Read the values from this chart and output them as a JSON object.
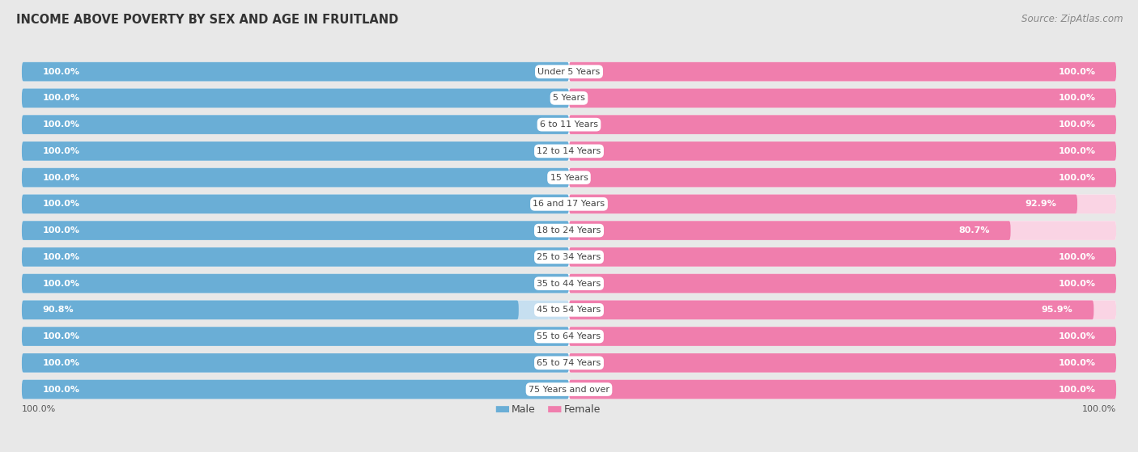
{
  "title": "INCOME ABOVE POVERTY BY SEX AND AGE IN FRUITLAND",
  "source": "Source: ZipAtlas.com",
  "categories": [
    "Under 5 Years",
    "5 Years",
    "6 to 11 Years",
    "12 to 14 Years",
    "15 Years",
    "16 and 17 Years",
    "18 to 24 Years",
    "25 to 34 Years",
    "35 to 44 Years",
    "45 to 54 Years",
    "55 to 64 Years",
    "65 to 74 Years",
    "75 Years and over"
  ],
  "male_values": [
    100.0,
    100.0,
    100.0,
    100.0,
    100.0,
    100.0,
    100.0,
    100.0,
    100.0,
    90.8,
    100.0,
    100.0,
    100.0
  ],
  "female_values": [
    100.0,
    100.0,
    100.0,
    100.0,
    100.0,
    92.9,
    80.7,
    100.0,
    100.0,
    95.9,
    100.0,
    100.0,
    100.0
  ],
  "male_color": "#6aaed6",
  "female_color": "#f07ead",
  "male_light_color": "#c6dff0",
  "female_light_color": "#fad4e4",
  "row_bg_color": "#ffffff",
  "gap_color": "#e8e8e8",
  "title_fontsize": 10.5,
  "source_fontsize": 8.5,
  "label_fontsize": 8,
  "category_fontsize": 8
}
